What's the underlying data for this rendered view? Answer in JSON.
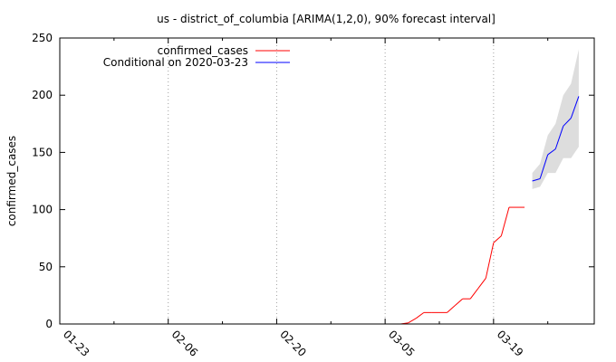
{
  "chart_data": {
    "type": "line",
    "title": "us - district_of_columbia [ARIMA(1,2,0), 90% forecast interval]",
    "xlabel": "",
    "ylabel": "confirmed_cases",
    "x_ticks": [
      "01-23",
      "02-06",
      "02-20",
      "03-05",
      "03-19"
    ],
    "y_ticks": [
      0,
      50,
      100,
      150,
      200,
      250
    ],
    "xlim": [
      "2020-01-23",
      "2020-04-01"
    ],
    "ylim": [
      0,
      250
    ],
    "grid": "vertical dotted only",
    "legend_position": "top-left",
    "series": [
      {
        "name": "confirmed_cases",
        "color": "#ff0000",
        "x": [
          "2020-01-23",
          "2020-03-07",
          "2020-03-08",
          "2020-03-09",
          "2020-03-10",
          "2020-03-11",
          "2020-03-12",
          "2020-03-13",
          "2020-03-14",
          "2020-03-15",
          "2020-03-16",
          "2020-03-17",
          "2020-03-18",
          "2020-03-19",
          "2020-03-20",
          "2020-03-21",
          "2020-03-22",
          "2020-03-23"
        ],
        "y": [
          0,
          0,
          1,
          5,
          10,
          10,
          10,
          10,
          16,
          22,
          22,
          31,
          40,
          71,
          77,
          102,
          102,
          102
        ]
      },
      {
        "name": "Conditional on 2020-03-23",
        "color": "#0000ff",
        "x": [
          "2020-03-24",
          "2020-03-25",
          "2020-03-26",
          "2020-03-27",
          "2020-03-28",
          "2020-03-29",
          "2020-03-30"
        ],
        "y": [
          125,
          127,
          148,
          153,
          173,
          180,
          199
        ]
      }
    ],
    "interval": {
      "label": "90% forecast interval",
      "color": "#dddddd",
      "x": [
        "2020-03-24",
        "2020-03-25",
        "2020-03-26",
        "2020-03-27",
        "2020-03-28",
        "2020-03-29",
        "2020-03-30"
      ],
      "lower": [
        118,
        120,
        132,
        132,
        145,
        145,
        155
      ],
      "upper": [
        132,
        140,
        165,
        175,
        200,
        210,
        240
      ]
    }
  }
}
